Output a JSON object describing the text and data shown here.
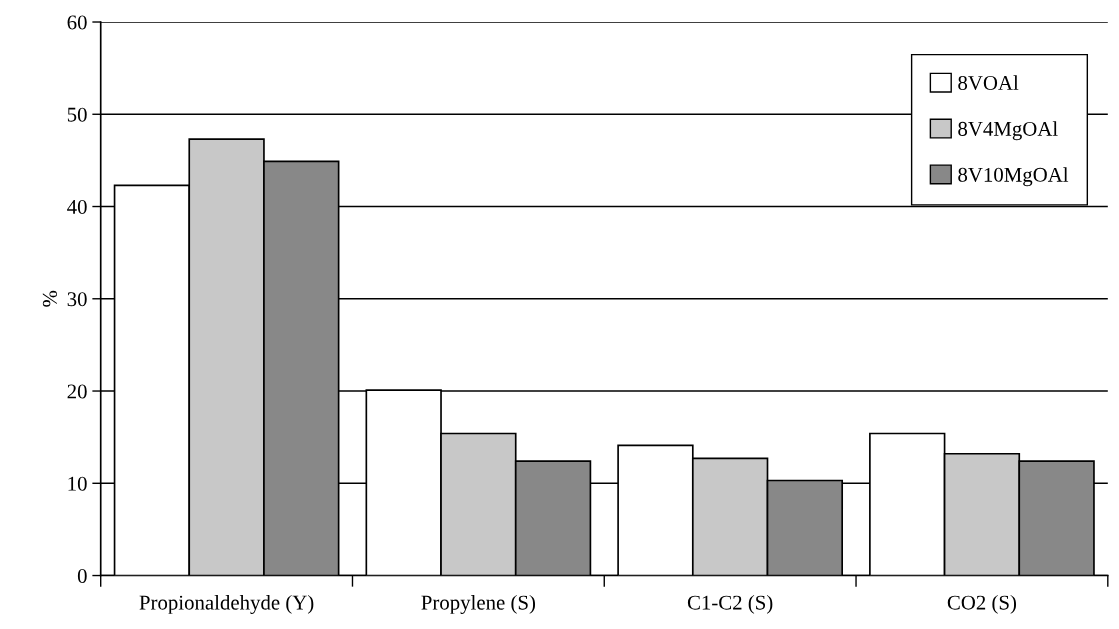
{
  "chart_data": {
    "type": "bar",
    "ylabel": "%",
    "categories": [
      "Propionaldehyde (Y)",
      "Propylene (S)",
      "C1-C2 (S)",
      "CO2 (S)"
    ],
    "series": [
      {
        "name": "8VOAl",
        "color": "#ffffff",
        "values": [
          42.3,
          20.1,
          14.1,
          15.4
        ]
      },
      {
        "name": "8V4MgOAl",
        "color": "#c8c8c8",
        "values": [
          47.3,
          15.4,
          12.7,
          13.2
        ]
      },
      {
        "name": "8V10MgOAl",
        "color": "#888888",
        "values": [
          44.9,
          12.4,
          10.3,
          12.4
        ]
      }
    ],
    "ylim": [
      0,
      60
    ],
    "yticks": [
      0,
      10,
      20,
      30,
      40,
      50,
      60
    ],
    "grid": "y",
    "legend": "top right"
  }
}
